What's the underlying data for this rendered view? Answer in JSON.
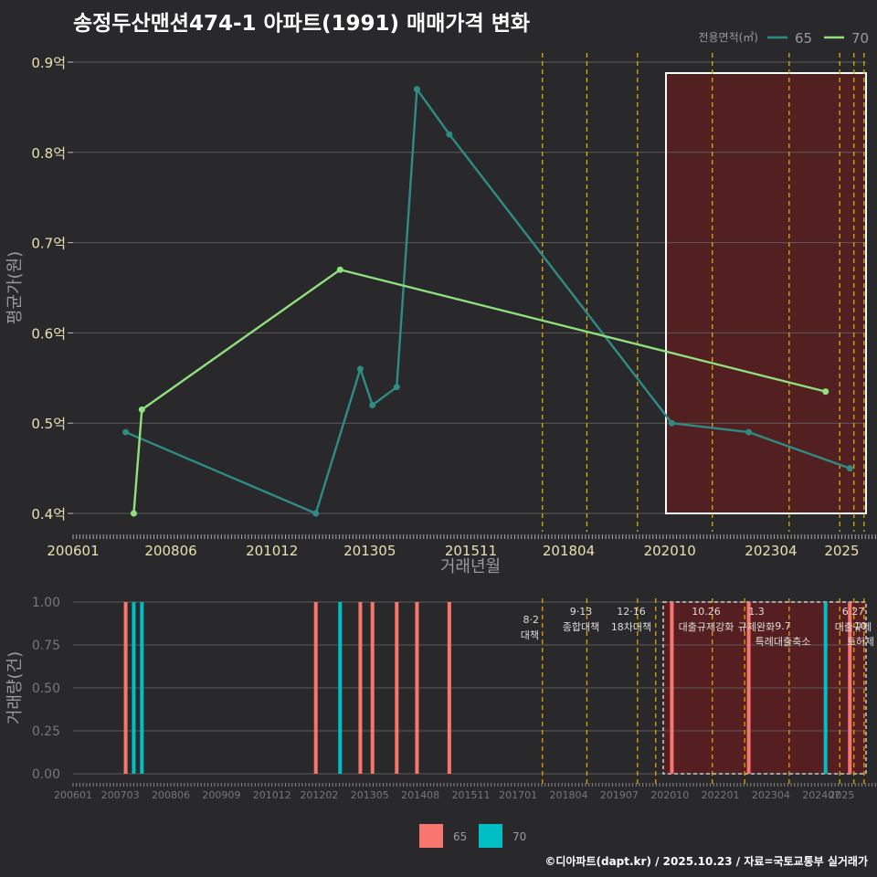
{
  "title": "송정두산맨션474-1 아파트(1991) 매매가격 변화",
  "footer": "©디아파트(dapt.kr) / 2025.10.23 / 자료=국토교통부 실거래가",
  "colors": {
    "bg": "#29292b",
    "grid": "#5a5a5a",
    "s65_top": "#2e8b85",
    "s70_top": "#90e07e",
    "s65_bot": "#f8766d",
    "s70_bot": "#00bfc4",
    "vline": "#d4b000",
    "shade": "#5a1e20",
    "box": "#ffffff",
    "axis_text": "#e8e0b0",
    "axis_text_dim": "#777777",
    "axis_title": "#9a9a9a"
  },
  "chart_data": [
    {
      "type": "line",
      "xlabel": "거래년월",
      "ylabel": "평균가(원)",
      "ylim": [
        0.4,
        0.9
      ],
      "yticks": [
        {
          "v": 0.4,
          "label": "0.4억"
        },
        {
          "v": 0.5,
          "label": "0.5억"
        },
        {
          "v": 0.6,
          "label": "0.6억"
        },
        {
          "v": 0.7,
          "label": "0.7억"
        },
        {
          "v": 0.8,
          "label": "0.8억"
        },
        {
          "v": 0.9,
          "label": "0.9억"
        }
      ],
      "xticks": [
        "200601",
        "200806",
        "201012",
        "201305",
        "201511",
        "201804",
        "202010",
        "202304",
        "2025"
      ],
      "legend_title": "전용면적(㎡)",
      "legend": [
        "65",
        "70"
      ],
      "legend_position": "top-right",
      "series": [
        {
          "name": "65",
          "points": [
            {
              "x": "2007.3",
              "y": 0.49
            },
            {
              "x": "2012.0",
              "y": 0.4
            },
            {
              "x": "2013.1",
              "y": 0.56
            },
            {
              "x": "2013.4",
              "y": 0.52
            },
            {
              "x": "2014.0",
              "y": 0.54
            },
            {
              "x": "2014.5",
              "y": 0.87
            },
            {
              "x": "2015.3",
              "y": 0.82
            },
            {
              "x": "2020.8",
              "y": 0.5
            },
            {
              "x": "2022.7",
              "y": 0.49
            },
            {
              "x": "2025.2",
              "y": 0.45
            }
          ]
        },
        {
          "name": "70",
          "points": [
            {
              "x": "2007.5",
              "y": 0.4
            },
            {
              "x": "2007.7",
              "y": 0.515
            },
            {
              "x": "2012.6",
              "y": 0.67
            },
            {
              "x": "2024.6",
              "y": 0.535
            }
          ]
        }
      ]
    },
    {
      "type": "bar",
      "xlabel": "",
      "ylabel": "거래량(건)",
      "ylim": [
        0,
        1
      ],
      "yticks": [
        {
          "v": 0,
          "label": "0.00"
        },
        {
          "v": 0.25,
          "label": "0.25"
        },
        {
          "v": 0.5,
          "label": "0.50"
        },
        {
          "v": 0.75,
          "label": "0.75"
        },
        {
          "v": 1,
          "label": "1.00"
        }
      ],
      "xticks": [
        "200601",
        "200703",
        "200806",
        "200909",
        "201012",
        "201202",
        "201305",
        "201408",
        "201511",
        "201701",
        "201804",
        "201907",
        "202010",
        "202201",
        "202304",
        "202407",
        "2025"
      ],
      "legend": [
        "65",
        "70"
      ],
      "legend_position": "bottom",
      "series": [
        {
          "name": "65",
          "x": [
            "2007.3",
            "2012.0",
            "2013.1",
            "2013.4",
            "2014.0",
            "2014.5",
            "2015.3",
            "2020.8",
            "2022.7",
            "2025.2"
          ],
          "values": [
            1,
            1,
            1,
            1,
            1,
            1,
            1,
            1,
            1,
            1
          ]
        },
        {
          "name": "70",
          "x": [
            "2007.5",
            "2007.7",
            "2012.6",
            "2024.6"
          ],
          "values": [
            1,
            1,
            1,
            1
          ]
        }
      ],
      "annotations": [
        {
          "date": "8·2",
          "label": "대책"
        },
        {
          "date": "9·13",
          "label": "종합대책"
        },
        {
          "date": "12·16",
          "label": "18차대책"
        },
        {
          "date": "10.26",
          "label": "대출규제강화"
        },
        {
          "date": "1.3",
          "label": "규제완화"
        },
        {
          "date": "9.7",
          "label": "특례대출축소"
        },
        {
          "date": "6.27",
          "label": "대출규제"
        },
        {
          "date": "10",
          "label": "토허제"
        }
      ]
    }
  ]
}
